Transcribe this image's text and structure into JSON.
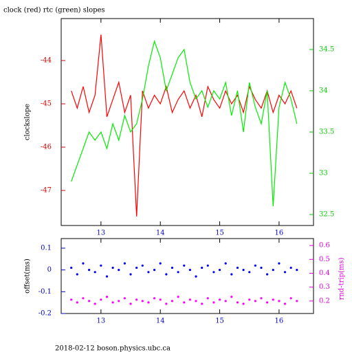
{
  "footer": "2018-02-12 boson.physics.ubc.ca",
  "chart_data": [
    {
      "type": "line",
      "title": "clock (red) rtc (green) slopes",
      "ylabel": "clockslope",
      "xlim": [
        12.33,
        16.58
      ],
      "xticks": [
        13,
        14,
        15,
        16
      ],
      "ylim": [
        -47.81,
        -43.03
      ],
      "yticks": [
        -47,
        -46,
        -45,
        -44
      ],
      "y2lim": [
        32.367,
        34.875
      ],
      "y2ticks": [
        32.5,
        33,
        33.5,
        34,
        34.5
      ],
      "ycolor": "#dd0000",
      "y2color": "#00cc00",
      "xcolor": "#0000cc",
      "x": [
        12.5,
        12.6,
        12.7,
        12.8,
        12.9,
        13.0,
        13.1,
        13.2,
        13.3,
        13.4,
        13.5,
        13.6,
        13.7,
        13.8,
        13.9,
        14.0,
        14.1,
        14.2,
        14.3,
        14.4,
        14.5,
        14.6,
        14.7,
        14.8,
        14.9,
        15.0,
        15.1,
        15.2,
        15.3,
        15.4,
        15.5,
        15.6,
        15.7,
        15.8,
        15.9,
        16.0,
        16.1,
        16.2,
        16.3
      ],
      "series": [
        {
          "name": "clock",
          "color": "#ff0000",
          "axis": "y",
          "values": [
            -44.7,
            -45.1,
            -44.6,
            -45.2,
            -44.8,
            -43.4,
            -45.3,
            -44.9,
            -44.5,
            -45.2,
            -44.8,
            -47.6,
            -44.7,
            -45.1,
            -44.8,
            -45.0,
            -44.6,
            -45.2,
            -44.9,
            -44.7,
            -45.1,
            -44.8,
            -45.3,
            -44.6,
            -44.9,
            -45.1,
            -44.7,
            -45.0,
            -44.8,
            -45.2,
            -44.6,
            -44.9,
            -45.1,
            -44.7,
            -45.2,
            -44.8,
            -45.0,
            -44.7,
            -45.1
          ]
        },
        {
          "name": "rtc",
          "color": "#00ee00",
          "axis": "y2",
          "values": [
            32.9,
            33.1,
            33.3,
            33.5,
            33.4,
            33.5,
            33.3,
            33.6,
            33.4,
            33.7,
            33.5,
            33.6,
            33.9,
            34.3,
            34.6,
            34.4,
            34.0,
            34.2,
            34.4,
            34.5,
            34.1,
            33.9,
            34.0,
            33.8,
            34.0,
            33.9,
            34.1,
            33.7,
            34.0,
            33.5,
            34.1,
            33.8,
            33.6,
            34.0,
            32.6,
            33.8,
            34.1,
            33.9,
            33.6
          ]
        }
      ]
    },
    {
      "type": "scatter",
      "ylabel": "offset(ms)",
      "y2label": "rnd-trip(ms)",
      "xlim": [
        12.33,
        16.58
      ],
      "xticks": [
        13,
        14,
        15,
        16
      ],
      "ylim": [
        -0.2,
        0.144
      ],
      "yticks": [
        -0.2,
        -0.1,
        0,
        0.1
      ],
      "y2lim": [
        0.11,
        0.65
      ],
      "y2ticks": [
        0.2,
        0.3,
        0.4,
        0.5,
        0.6
      ],
      "ycolor": "#0000cc",
      "y2color": "#dd00dd",
      "xcolor": "#0000cc",
      "x": [
        12.5,
        12.6,
        12.7,
        12.8,
        12.9,
        13.0,
        13.1,
        13.2,
        13.3,
        13.4,
        13.5,
        13.6,
        13.7,
        13.8,
        13.9,
        14.0,
        14.1,
        14.2,
        14.3,
        14.4,
        14.5,
        14.6,
        14.7,
        14.8,
        14.9,
        15.0,
        15.1,
        15.2,
        15.3,
        15.4,
        15.5,
        15.6,
        15.7,
        15.8,
        15.9,
        16.0,
        16.1,
        16.2,
        16.3
      ],
      "series": [
        {
          "name": "offset",
          "color": "#0000ff",
          "axis": "y",
          "values": [
            0.01,
            -0.02,
            0.03,
            0.0,
            -0.01,
            0.02,
            -0.03,
            0.01,
            0.0,
            0.03,
            -0.02,
            0.01,
            0.02,
            -0.01,
            0.0,
            0.03,
            -0.02,
            0.01,
            -0.01,
            0.02,
            0.0,
            -0.03,
            0.01,
            0.02,
            -0.01,
            0.0,
            0.03,
            -0.02,
            0.01,
            0.0,
            -0.01,
            0.02,
            0.01,
            -0.02,
            0.0,
            0.03,
            -0.01,
            0.01,
            0.0
          ]
        },
        {
          "name": "rnd-trip",
          "color": "#ff00ff",
          "axis": "y2",
          "values": [
            0.21,
            0.19,
            0.22,
            0.2,
            0.18,
            0.21,
            0.23,
            0.19,
            0.2,
            0.22,
            0.18,
            0.21,
            0.2,
            0.19,
            0.22,
            0.21,
            0.18,
            0.2,
            0.23,
            0.19,
            0.21,
            0.2,
            0.18,
            0.22,
            0.19,
            0.21,
            0.2,
            0.23,
            0.19,
            0.18,
            0.21,
            0.2,
            0.22,
            0.19,
            0.21,
            0.2,
            0.18,
            0.22,
            0.2
          ]
        }
      ]
    }
  ]
}
